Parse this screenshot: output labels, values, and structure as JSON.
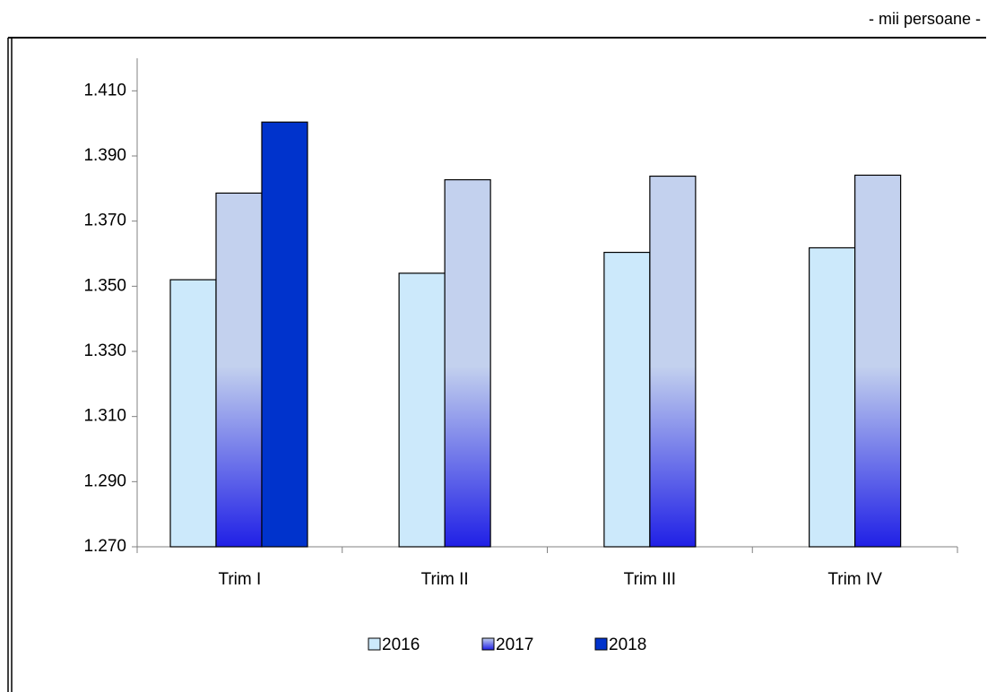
{
  "chart_data": {
    "type": "bar",
    "subtitle": "- mii persoane -",
    "categories": [
      "Trim I",
      "Trim II",
      "Trim III",
      "Trim IV"
    ],
    "series": [
      {
        "name": "2016",
        "color": "#cce9fb",
        "values": [
          1352,
          1354,
          1360.4,
          1361.8
        ]
      },
      {
        "name": "2017",
        "color": "#c3d1ee",
        "values": [
          1378.6,
          1382.7,
          1383.8,
          1384.1
        ]
      },
      {
        "name": "2018",
        "color": "#0033cc",
        "values": [
          1400.4,
          null,
          null,
          null
        ]
      }
    ],
    "ylim": [
      1270,
      1420
    ],
    "yticks": [
      {
        "value": 1270,
        "label": "1.270"
      },
      {
        "value": 1290,
        "label": "1.290"
      },
      {
        "value": 1310,
        "label": "1.310"
      },
      {
        "value": 1330,
        "label": "1.330"
      },
      {
        "value": 1350,
        "label": "1.350"
      },
      {
        "value": 1370,
        "label": "1.370"
      },
      {
        "value": 1390,
        "label": "1.390"
      },
      {
        "value": 1410,
        "label": "1.410"
      }
    ],
    "legend": "bottom"
  }
}
